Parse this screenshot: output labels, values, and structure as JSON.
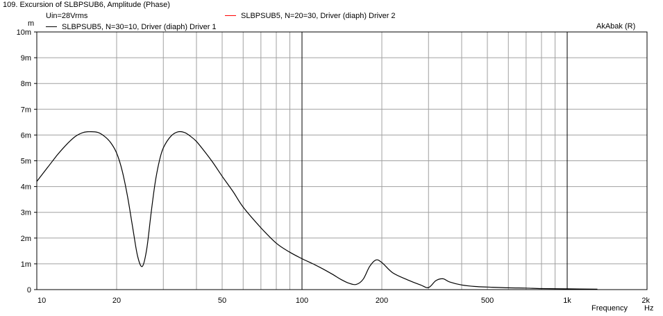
{
  "window": {
    "title": "109. Excursion of SLBPSUB6, Amplitude (Phase)"
  },
  "chart_data": {
    "type": "line",
    "title": "109. Excursion of SLBPSUB6, Amplitude (Phase)",
    "annotation_left": "Uin=28Vrms",
    "annotation_right": "AkAbak (R)",
    "xscale": "log",
    "xlim": [
      10,
      2000
    ],
    "ylim": [
      0,
      10
    ],
    "y_unit": "m",
    "x_unit": "Hz",
    "xlabel": "Frequency",
    "ylabel": "m",
    "grid": true,
    "legend_position": "top",
    "x_ticks": [
      {
        "value": 10,
        "label": "10"
      },
      {
        "value": 20,
        "label": "20"
      },
      {
        "value": 50,
        "label": "50"
      },
      {
        "value": 100,
        "label": "100"
      },
      {
        "value": 200,
        "label": "200"
      },
      {
        "value": 500,
        "label": "500"
      },
      {
        "value": 1000,
        "label": "1k"
      },
      {
        "value": 2000,
        "label": "2k"
      }
    ],
    "y_ticks": [
      {
        "value": 0,
        "label": "0"
      },
      {
        "value": 1,
        "label": "1m"
      },
      {
        "value": 2,
        "label": "2m"
      },
      {
        "value": 3,
        "label": "3m"
      },
      {
        "value": 4,
        "label": "4m"
      },
      {
        "value": 5,
        "label": "5m"
      },
      {
        "value": 6,
        "label": "6m"
      },
      {
        "value": 7,
        "label": "7m"
      },
      {
        "value": 8,
        "label": "8m"
      },
      {
        "value": 9,
        "label": "9m"
      },
      {
        "value": 10,
        "label": "10m"
      }
    ],
    "series": [
      {
        "name": "SLBPSUB5, N=30=10, Driver (diaph) Driver 1",
        "color": "#000000",
        "x": [
          10,
          11,
          12,
          13,
          14,
          15,
          16,
          17,
          18,
          19,
          20,
          21,
          22,
          23,
          24,
          25,
          26,
          27,
          28,
          29,
          30,
          32,
          34,
          36,
          38,
          40,
          43,
          46,
          50,
          55,
          60,
          70,
          80,
          90,
          100,
          110,
          120,
          130,
          140,
          150,
          160,
          170,
          180,
          190,
          200,
          220,
          250,
          280,
          300,
          320,
          340,
          360,
          400,
          450,
          500,
          600,
          700,
          800,
          1000,
          1300
        ],
        "y": [
          4.2,
          4.75,
          5.25,
          5.65,
          5.95,
          6.1,
          6.13,
          6.1,
          5.95,
          5.7,
          5.3,
          4.6,
          3.6,
          2.4,
          1.3,
          0.9,
          1.6,
          3.0,
          4.2,
          5.0,
          5.5,
          5.95,
          6.12,
          6.1,
          5.95,
          5.75,
          5.35,
          4.95,
          4.4,
          3.8,
          3.2,
          2.4,
          1.8,
          1.45,
          1.2,
          1.0,
          0.8,
          0.6,
          0.4,
          0.25,
          0.2,
          0.4,
          0.9,
          1.15,
          1.05,
          0.65,
          0.38,
          0.18,
          0.08,
          0.35,
          0.42,
          0.3,
          0.18,
          0.12,
          0.1,
          0.07,
          0.06,
          0.04,
          0.03,
          0.02
        ]
      },
      {
        "name": "SLBPSUB5, N=20=30, Driver (diaph) Driver 2",
        "color": "#ff0000",
        "x": [],
        "y": []
      }
    ]
  }
}
